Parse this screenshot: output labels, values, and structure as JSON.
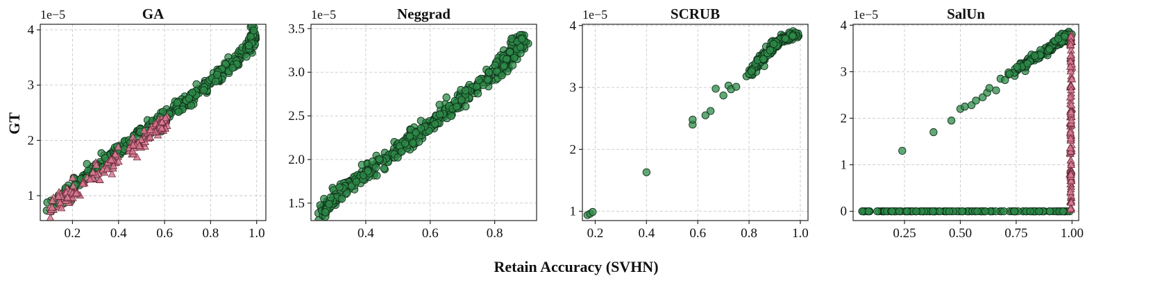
{
  "figure": {
    "ylabel": "GT",
    "xlabel": "Retain Accuracy (SVHN)"
  },
  "colors": {
    "green": "#2e8b48",
    "green_edge": "#10301a",
    "pink": "#d97a93",
    "pink_edge": "#6a2a3a"
  },
  "chart_data": [
    {
      "type": "scatter",
      "title": "GA",
      "offset_text": "1e−5",
      "xlim": [
        0.06,
        1.04
      ],
      "ylim": [
        0.55,
        4.1
      ],
      "xticks": [
        0.2,
        0.4,
        0.6,
        0.8,
        1.0
      ],
      "xtick_labels": [
        "0.2",
        "0.4",
        "0.6",
        "0.8",
        "1.0"
      ],
      "yticks": [
        1,
        2,
        3,
        4
      ],
      "ytick_labels": [
        "1",
        "2",
        "3",
        "4"
      ],
      "grid": true,
      "series": [
        {
          "marker": "circle",
          "color": "green",
          "trend": [
            [
              0.09,
              0.72
            ],
            [
              0.2,
              1.15
            ],
            [
              0.3,
              1.5
            ],
            [
              0.4,
              1.82
            ],
            [
              0.5,
              2.12
            ],
            [
              0.6,
              2.42
            ],
            [
              0.7,
              2.72
            ],
            [
              0.8,
              3.05
            ],
            [
              0.9,
              3.4
            ],
            [
              0.98,
              3.8
            ],
            [
              0.99,
              3.92
            ]
          ],
          "count": 420,
          "spread": 0.07
        },
        {
          "marker": "triangle",
          "color": "pink",
          "trend": [
            [
              0.09,
              0.72
            ],
            [
              0.15,
              0.9
            ],
            [
              0.2,
              1.05
            ],
            [
              0.3,
              1.38
            ],
            [
              0.4,
              1.7
            ],
            [
              0.5,
              1.98
            ],
            [
              0.58,
              2.25
            ],
            [
              0.6,
              2.3
            ]
          ],
          "count": 170,
          "spread": 0.08
        }
      ]
    },
    {
      "type": "scatter",
      "title": "Neggrad",
      "offset_text": "1e−5",
      "xlim": [
        0.23,
        0.93
      ],
      "ylim": [
        1.3,
        3.55
      ],
      "xticks": [
        0.4,
        0.6,
        0.8
      ],
      "xtick_labels": [
        "0.4",
        "0.6",
        "0.8"
      ],
      "yticks": [
        1.5,
        2.0,
        2.5,
        3.0,
        3.5
      ],
      "ytick_labels": [
        "1.5",
        "2.0",
        "2.5",
        "3.0",
        "3.5"
      ],
      "grid": true,
      "series": [
        {
          "marker": "circle",
          "color": "green",
          "trend": [
            [
              0.26,
              1.38
            ],
            [
              0.3,
              1.55
            ],
            [
              0.4,
              1.85
            ],
            [
              0.5,
              2.12
            ],
            [
              0.6,
              2.4
            ],
            [
              0.7,
              2.7
            ],
            [
              0.8,
              2.98
            ],
            [
              0.86,
              3.25
            ],
            [
              0.89,
              3.4
            ]
          ],
          "count": 520,
          "spread": 0.08
        }
      ]
    },
    {
      "type": "scatter",
      "title": "SCRUB",
      "offset_text": "1e−5",
      "xlim": [
        0.15,
        1.03
      ],
      "ylim": [
        0.85,
        4.02
      ],
      "xticks": [
        0.2,
        0.4,
        0.6,
        0.8,
        1.0
      ],
      "xtick_labels": [
        "0.2",
        "0.4",
        "0.6",
        "0.8",
        "1.0"
      ],
      "yticks": [
        1,
        2,
        3,
        4
      ],
      "ytick_labels": [
        "1",
        "2",
        "3",
        "4"
      ],
      "grid": true,
      "series": [
        {
          "marker": "circle",
          "color": "green",
          "points": [
            [
              0.17,
              0.94
            ],
            [
              0.18,
              0.96
            ],
            [
              0.19,
              0.99
            ],
            [
              0.4,
              1.63
            ],
            [
              0.58,
              2.4
            ],
            [
              0.58,
              2.48
            ],
            [
              0.63,
              2.55
            ],
            [
              0.65,
              2.62
            ],
            [
              0.67,
              2.98
            ],
            [
              0.7,
              2.87
            ],
            [
              0.72,
              3.03
            ],
            [
              0.73,
              2.97
            ],
            [
              0.75,
              3.01
            ],
            [
              0.79,
              3.18
            ],
            [
              0.8,
              3.22
            ],
            [
              0.81,
              3.26
            ]
          ],
          "trend": [
            [
              0.8,
              3.2
            ],
            [
              0.84,
              3.4
            ],
            [
              0.88,
              3.6
            ],
            [
              0.92,
              3.75
            ],
            [
              0.96,
              3.82
            ],
            [
              0.99,
              3.86
            ]
          ],
          "count": 170,
          "spread": 0.03
        }
      ]
    },
    {
      "type": "scatter",
      "title": "SalUn",
      "offset_text": "1e−5",
      "xlim": [
        0.02,
        1.03
      ],
      "ylim": [
        -0.2,
        4.02
      ],
      "xticks": [
        0.25,
        0.5,
        0.75,
        1.0
      ],
      "xtick_labels": [
        "0.25",
        "0.50",
        "0.75",
        "1.00"
      ],
      "yticks": [
        0,
        1,
        2,
        3,
        4
      ],
      "ytick_labels": [
        "0",
        "1",
        "2",
        "3",
        "4"
      ],
      "grid": true,
      "series": [
        {
          "marker": "circle",
          "color": "green",
          "points": [
            [
              0.24,
              1.3
            ],
            [
              0.38,
              1.7
            ],
            [
              0.46,
              1.95
            ],
            [
              0.5,
              2.2
            ],
            [
              0.52,
              2.25
            ],
            [
              0.55,
              2.28
            ],
            [
              0.57,
              2.38
            ],
            [
              0.6,
              2.45
            ],
            [
              0.62,
              2.55
            ],
            [
              0.63,
              2.65
            ],
            [
              0.66,
              2.6
            ],
            [
              0.68,
              2.85
            ],
            [
              0.7,
              2.82
            ],
            [
              0.72,
              2.95
            ]
          ],
          "trend": [
            [
              0.72,
              2.95
            ],
            [
              0.8,
              3.2
            ],
            [
              0.88,
              3.45
            ],
            [
              0.95,
              3.68
            ],
            [
              0.99,
              3.82
            ]
          ],
          "count": 150,
          "spread": 0.035
        },
        {
          "marker": "circle",
          "color": "green",
          "baseline_range": [
            0.06,
            0.99
          ],
          "baseline_y": 0.0,
          "count": 150
        },
        {
          "marker": "triangle",
          "color": "pink",
          "vertical_x": 0.995,
          "vertical_range": [
            0.0,
            3.85
          ],
          "count": 140
        }
      ]
    }
  ]
}
